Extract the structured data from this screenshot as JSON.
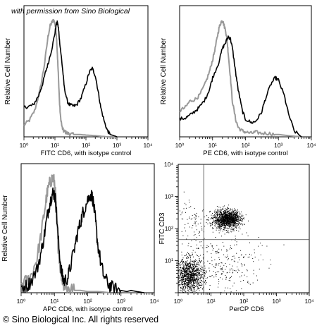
{
  "watermark": "with permission from Sino Biological",
  "footer": "© Sino Biological Inc. All rights reserved",
  "chart_data": [
    {
      "type": "line",
      "xscale": "log",
      "xlim": [
        1,
        10000
      ],
      "xticks": [
        "10⁰",
        "10¹",
        "10²",
        "10³",
        "10⁴"
      ],
      "xlabel": "FITC CD6,  with isotype control",
      "ylabel": "Relative Cell Number",
      "series": [
        {
          "color": "#999999",
          "x": [
            1,
            1.5,
            2.2,
            3.2,
            4.5,
            6,
            7,
            8,
            9,
            10,
            11,
            12,
            13,
            14,
            15,
            17,
            19,
            22,
            25,
            30,
            40,
            60,
            100,
            200,
            500,
            1000
          ],
          "y": [
            0.1,
            0.14,
            0.22,
            0.38,
            0.6,
            0.85,
            0.94,
            0.97,
            0.99,
            0.96,
            0.88,
            0.7,
            0.5,
            0.3,
            0.18,
            0.08,
            0.05,
            0.04,
            0.03,
            0.025,
            0.02,
            0.02,
            0.015,
            0.01,
            0.0,
            0.0
          ]
        },
        {
          "color": "#000000",
          "x": [
            1,
            1.5,
            2,
            3,
            4,
            5,
            6,
            8,
            10,
            11,
            12,
            13,
            14,
            16,
            18,
            20,
            25,
            30,
            40,
            50,
            70,
            100,
            130,
            160,
            200,
            250,
            300,
            400,
            500,
            600,
            800,
            1000
          ],
          "y": [
            0.25,
            0.26,
            0.27,
            0.35,
            0.45,
            0.55,
            0.62,
            0.75,
            0.88,
            0.95,
            0.97,
            0.92,
            0.82,
            0.68,
            0.55,
            0.42,
            0.3,
            0.27,
            0.26,
            0.27,
            0.33,
            0.45,
            0.55,
            0.58,
            0.52,
            0.38,
            0.25,
            0.12,
            0.05,
            0.02,
            0.01,
            0.0
          ]
        }
      ]
    },
    {
      "type": "line",
      "xscale": "log",
      "xlim": [
        1,
        10000
      ],
      "xticks": [
        "10⁰",
        "10¹",
        "10²",
        "10³",
        "10⁴"
      ],
      "xlabel": "PE CD6,  with isotype control",
      "ylabel": "Relative Cell Number",
      "series": [
        {
          "color": "#999999",
          "x": [
            1,
            1.5,
            2,
            3,
            4,
            6,
            8,
            10,
            12,
            14,
            16,
            18,
            20,
            22,
            25,
            28,
            30,
            35,
            40,
            50,
            60,
            80,
            100,
            150,
            200,
            300,
            500,
            800,
            1000,
            2000,
            5000
          ],
          "y": [
            0.22,
            0.25,
            0.3,
            0.32,
            0.35,
            0.45,
            0.55,
            0.65,
            0.75,
            0.85,
            0.93,
            0.97,
            0.99,
            0.95,
            0.9,
            0.8,
            0.7,
            0.5,
            0.3,
            0.15,
            0.08,
            0.05,
            0.04,
            0.03,
            0.04,
            0.03,
            0.03,
            0.02,
            0.02,
            0.01,
            0.0
          ]
        },
        {
          "color": "#000000",
          "x": [
            1,
            1.5,
            2,
            3,
            4,
            6,
            8,
            10,
            15,
            20,
            25,
            30,
            35,
            40,
            50,
            60,
            80,
            100,
            150,
            200,
            300,
            400,
            600,
            800,
            1000,
            1500,
            2000,
            3000,
            5000
          ],
          "y": [
            0.15,
            0.16,
            0.18,
            0.22,
            0.25,
            0.32,
            0.4,
            0.5,
            0.62,
            0.75,
            0.8,
            0.85,
            0.83,
            0.75,
            0.55,
            0.4,
            0.22,
            0.15,
            0.12,
            0.13,
            0.2,
            0.32,
            0.45,
            0.5,
            0.48,
            0.35,
            0.2,
            0.05,
            0.0
          ]
        }
      ]
    },
    {
      "type": "line",
      "xscale": "log",
      "xlim": [
        1,
        10000
      ],
      "xticks": [
        "10⁰",
        "10¹",
        "10²",
        "10³",
        "10⁴"
      ],
      "xlabel": "APC CD6, with isotype control",
      "ylabel": "Relative Cell Number",
      "series": [
        {
          "color": "#999999",
          "x": [
            1,
            1.5,
            2,
            3,
            4,
            5,
            6,
            7,
            8,
            9,
            10,
            11,
            12,
            13,
            15,
            17,
            20,
            25,
            30,
            40,
            60,
            100,
            200,
            500
          ],
          "y": [
            0.08,
            0.1,
            0.15,
            0.3,
            0.5,
            0.7,
            0.85,
            0.93,
            0.97,
            0.99,
            0.95,
            0.8,
            0.6,
            0.4,
            0.22,
            0.12,
            0.06,
            0.04,
            0.03,
            0.02,
            0.02,
            0.01,
            0.01,
            0.0
          ]
        },
        {
          "color": "#000000",
          "x": [
            1,
            1.5,
            2,
            3,
            4,
            5,
            6,
            7,
            8,
            9,
            10,
            11,
            12,
            14,
            16,
            18,
            20,
            25,
            30,
            40,
            50,
            60,
            70,
            80,
            100,
            120,
            140,
            160,
            180,
            200,
            250,
            300,
            400,
            500,
            700,
            1000,
            1500,
            2000,
            3000,
            5000
          ],
          "y": [
            0.05,
            0.06,
            0.1,
            0.2,
            0.35,
            0.5,
            0.65,
            0.75,
            0.82,
            0.86,
            0.85,
            0.78,
            0.6,
            0.35,
            0.2,
            0.12,
            0.1,
            0.13,
            0.22,
            0.38,
            0.52,
            0.6,
            0.68,
            0.72,
            0.8,
            0.85,
            0.82,
            0.7,
            0.55,
            0.42,
            0.25,
            0.15,
            0.08,
            0.05,
            0.03,
            0.02,
            0.01,
            0.02,
            0.01,
            0.0
          ]
        }
      ]
    },
    {
      "type": "scatter",
      "xscale": "log",
      "yscale": "log",
      "xlim": [
        1,
        10000
      ],
      "ylim": [
        1,
        10000
      ],
      "xticks": [
        "10⁰",
        "10¹",
        "10²",
        "10³",
        "10⁴"
      ],
      "yticks": [
        "10⁰",
        "10¹",
        "10²",
        "10³",
        "10⁴"
      ],
      "xlabel": "PerCP CD6",
      "ylabel": "FITC CD3",
      "quadrant": {
        "x": 6,
        "y": 45
      },
      "clusters": [
        {
          "cx": 30,
          "cy": 200,
          "sx": 0.2,
          "sy": 0.14,
          "count": 1400
        },
        {
          "cx": 2.2,
          "cy": 3.5,
          "sx": 0.22,
          "sy": 0.26,
          "count": 1100
        },
        {
          "cx": 2.8,
          "cy": 160,
          "sx": 0.25,
          "sy": 0.4,
          "count": 90
        },
        {
          "cx": 25,
          "cy": 8,
          "sx": 0.55,
          "sy": 0.5,
          "count": 260
        }
      ]
    }
  ]
}
